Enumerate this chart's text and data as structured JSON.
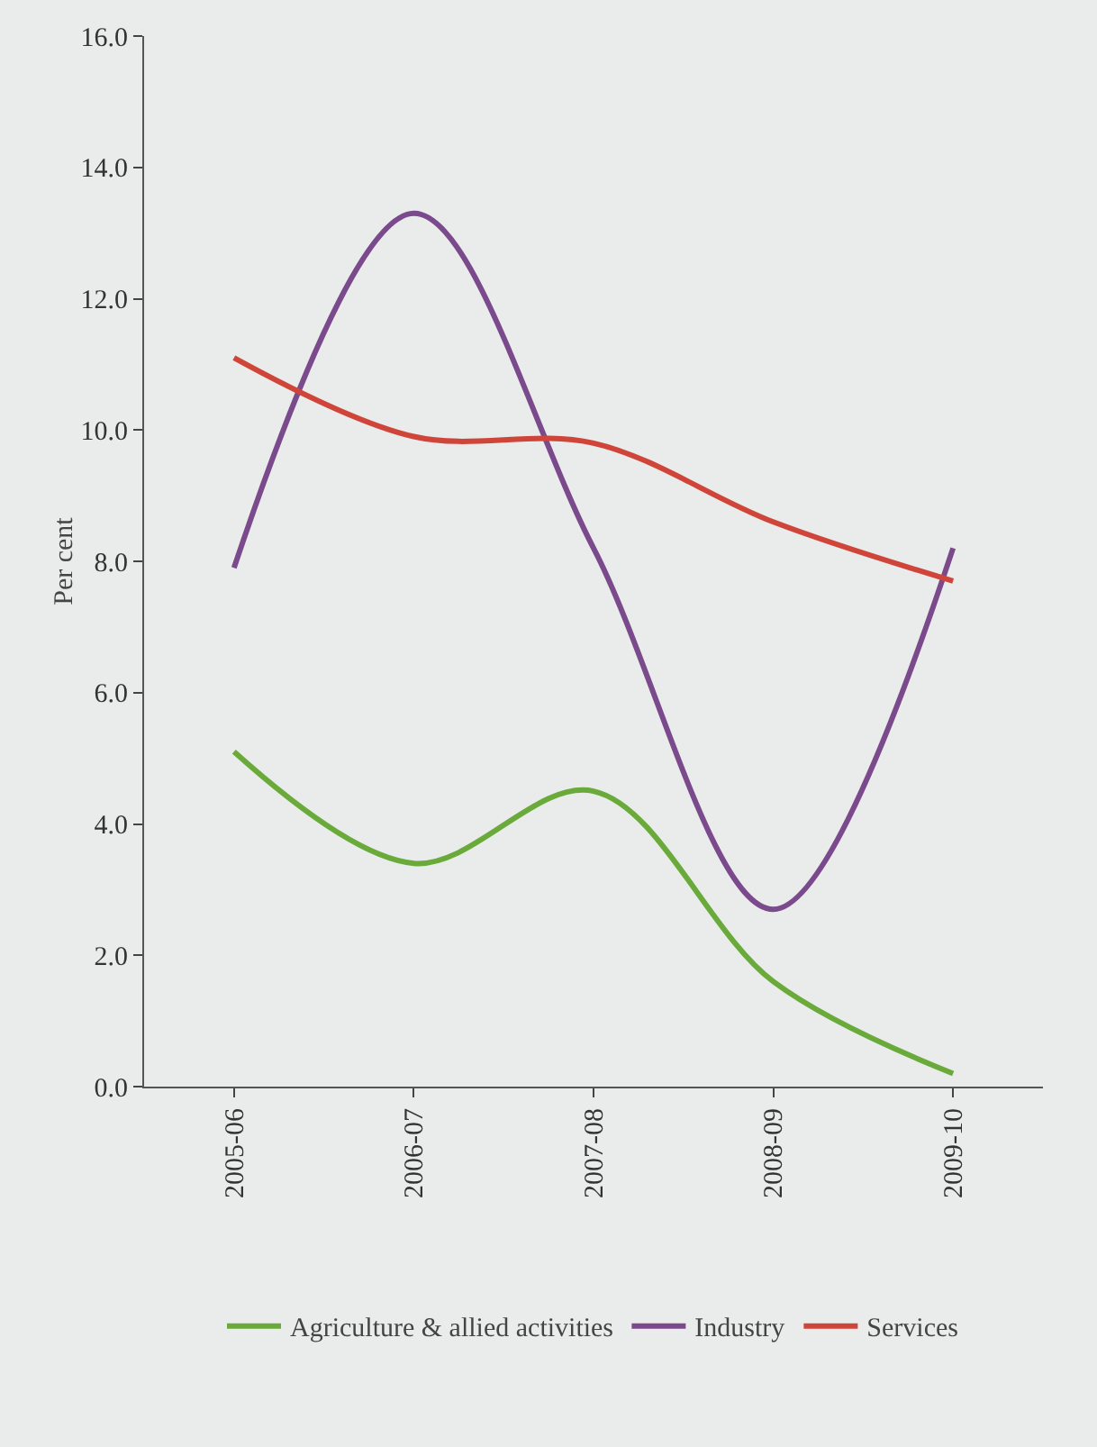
{
  "chart_data": {
    "type": "line",
    "ylabel": "Per cent",
    "categories": [
      "2005-06",
      "2006-07",
      "2007-08",
      "2008-09",
      "2009-10"
    ],
    "series": [
      {
        "name": "Agriculture & allied activities",
        "color": "#6aaa3a",
        "values": [
          5.1,
          3.4,
          4.5,
          1.6,
          0.2
        ]
      },
      {
        "name": "Industry",
        "color": "#7b4a8c",
        "values": [
          7.9,
          13.3,
          8.2,
          2.7,
          8.2
        ]
      },
      {
        "name": "Services",
        "color": "#d0453a",
        "values": [
          11.1,
          9.9,
          9.8,
          8.6,
          7.7
        ]
      }
    ],
    "ylim": [
      0,
      16
    ],
    "yticks": [
      {
        "value": 0,
        "label": "0.0"
      },
      {
        "value": 2,
        "label": "2.0"
      },
      {
        "value": 4,
        "label": "4.0"
      },
      {
        "value": 6,
        "label": "6.0"
      },
      {
        "value": 8,
        "label": "8.0"
      },
      {
        "value": 10,
        "label": "10.0"
      },
      {
        "value": 12,
        "label": "12.0"
      },
      {
        "value": 14,
        "label": "14.0"
      },
      {
        "value": 16,
        "label": "16.0"
      }
    ],
    "grid": false,
    "legend": "bottom",
    "marker": "none",
    "line_style": "solid"
  }
}
